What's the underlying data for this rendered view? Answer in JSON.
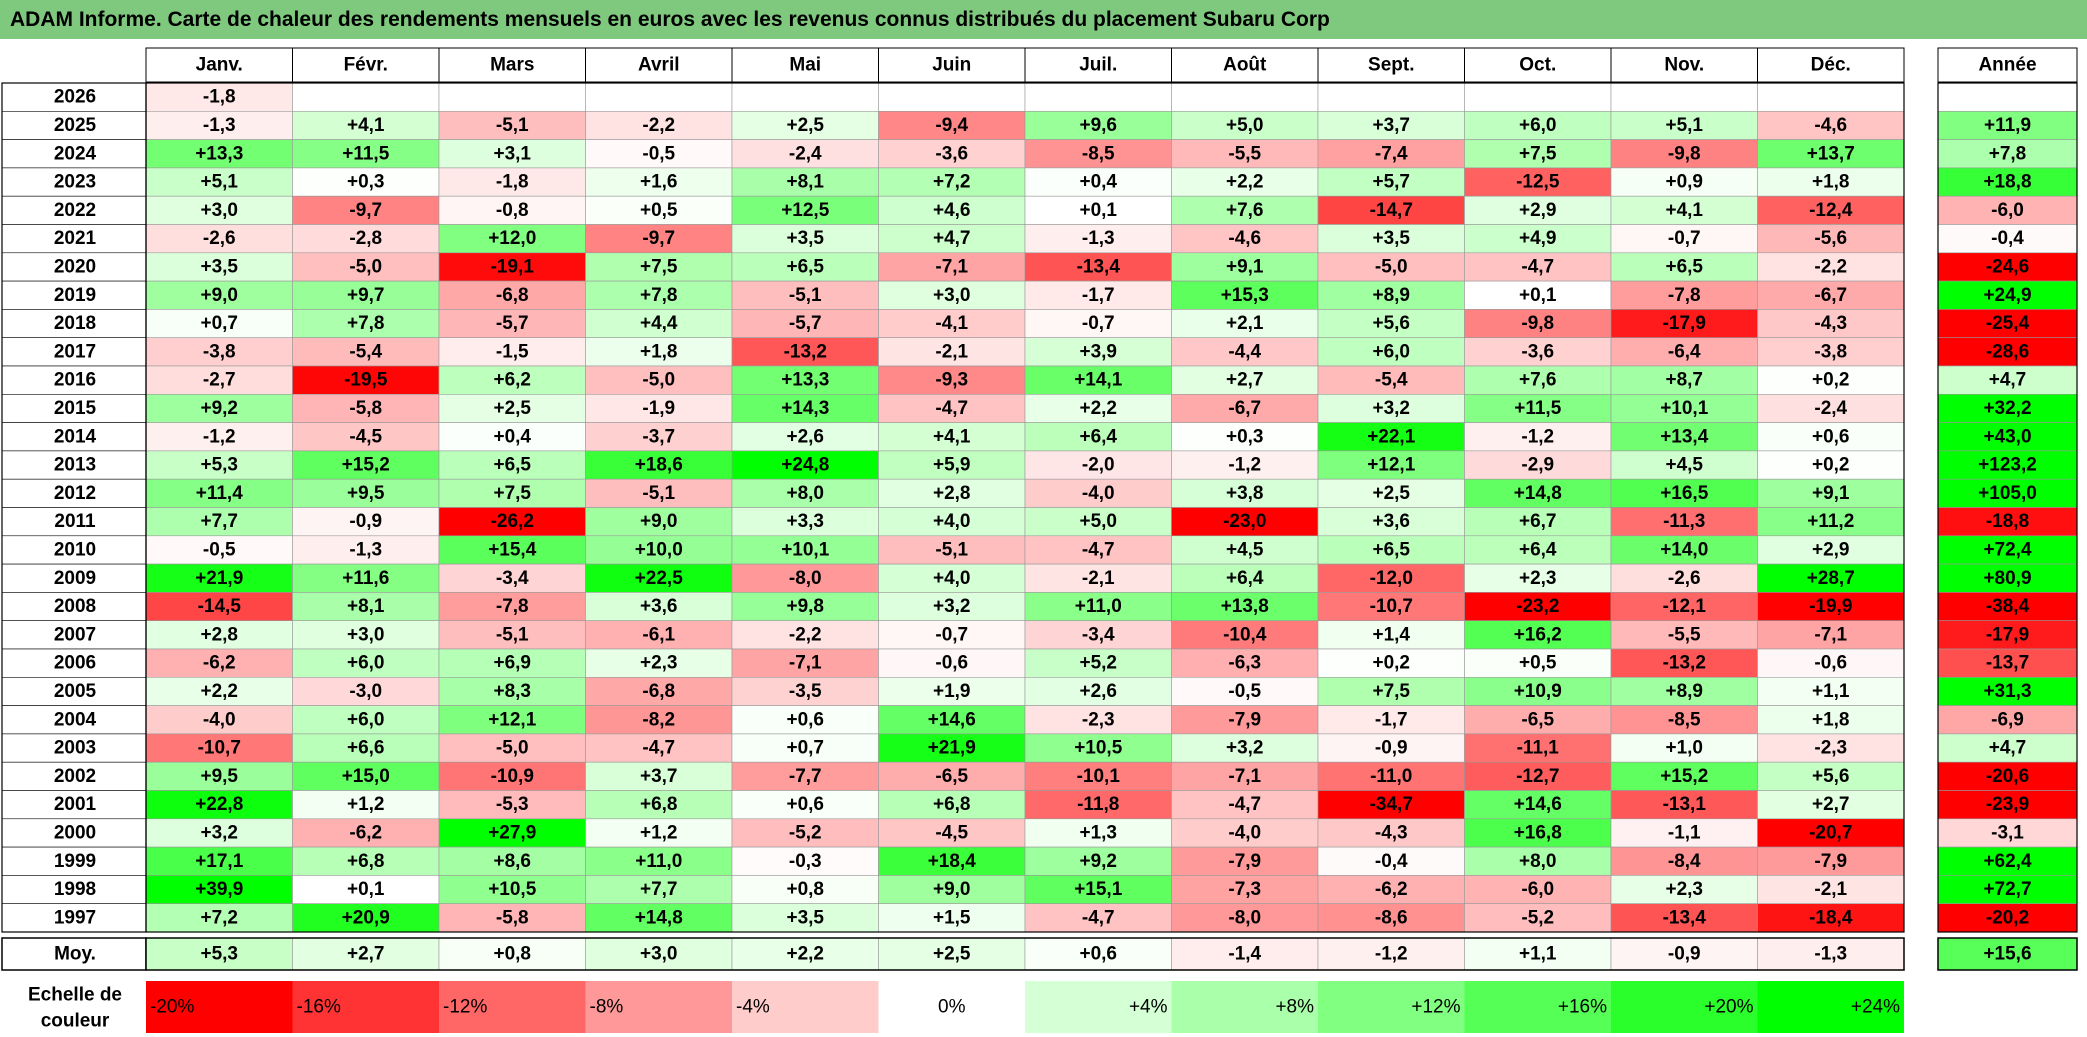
{
  "title": "ADAM Informe. Carte de chaleur des rendements mensuels en euros avec les revenus connus distribués du placement Subaru Corp",
  "chart_data": {
    "type": "heatmap",
    "months": [
      "Janv.",
      "Févr.",
      "Mars",
      "Avril",
      "Mai",
      "Juin",
      "Juil.",
      "Août",
      "Sept.",
      "Oct.",
      "Nov.",
      "Déc."
    ],
    "year_header": "Année",
    "avg_label": "Moy.",
    "scale_label_line1": "Echelle de",
    "scale_label_line2": "couleur",
    "rows": [
      {
        "year": "2026",
        "values": [
          -1.8,
          null,
          null,
          null,
          null,
          null,
          null,
          null,
          null,
          null,
          null,
          null
        ],
        "total": null
      },
      {
        "year": "2025",
        "values": [
          -1.3,
          4.1,
          -5.1,
          -2.2,
          2.5,
          -9.4,
          9.6,
          5.0,
          3.7,
          6.0,
          5.1,
          -4.6
        ],
        "total": 11.9
      },
      {
        "year": "2024",
        "values": [
          13.3,
          11.5,
          3.1,
          -0.5,
          -2.4,
          -3.6,
          -8.5,
          -5.5,
          -7.4,
          7.5,
          -9.8,
          13.7
        ],
        "total": 7.8
      },
      {
        "year": "2023",
        "values": [
          5.1,
          0.3,
          -1.8,
          1.6,
          8.1,
          7.2,
          0.4,
          2.2,
          5.7,
          -12.5,
          0.9,
          1.8
        ],
        "total": 18.8
      },
      {
        "year": "2022",
        "values": [
          3.0,
          -9.7,
          -0.8,
          0.5,
          12.5,
          4.6,
          0.1,
          7.6,
          -14.7,
          2.9,
          4.1,
          -12.4
        ],
        "total": -6.0
      },
      {
        "year": "2021",
        "values": [
          -2.6,
          -2.8,
          12.0,
          -9.7,
          3.5,
          4.7,
          -1.3,
          -4.6,
          3.5,
          4.9,
          -0.7,
          -5.6
        ],
        "total": -0.4
      },
      {
        "year": "2020",
        "values": [
          3.5,
          -5.0,
          -19.1,
          7.5,
          6.5,
          -7.1,
          -13.4,
          9.1,
          -5.0,
          -4.7,
          6.5,
          -2.2
        ],
        "total": -24.6
      },
      {
        "year": "2019",
        "values": [
          9.0,
          9.7,
          -6.8,
          7.8,
          -5.1,
          3.0,
          -1.7,
          15.3,
          8.9,
          0.1,
          -7.8,
          -6.7
        ],
        "total": 24.9
      },
      {
        "year": "2018",
        "values": [
          0.7,
          7.8,
          -5.7,
          4.4,
          -5.7,
          -4.1,
          -0.7,
          2.1,
          5.6,
          -9.8,
          -17.9,
          -4.3
        ],
        "total": -25.4
      },
      {
        "year": "2017",
        "values": [
          -3.8,
          -5.4,
          -1.5,
          1.8,
          -13.2,
          -2.1,
          3.9,
          -4.4,
          6.0,
          -3.6,
          -6.4,
          -3.8
        ],
        "total": -28.6
      },
      {
        "year": "2016",
        "values": [
          -2.7,
          -19.5,
          6.2,
          -5.0,
          13.3,
          -9.3,
          14.1,
          2.7,
          -5.4,
          7.6,
          8.7,
          0.2
        ],
        "total": 4.7
      },
      {
        "year": "2015",
        "values": [
          9.2,
          -5.8,
          2.5,
          -1.9,
          14.3,
          -4.7,
          2.2,
          -6.7,
          3.2,
          11.5,
          10.1,
          -2.4
        ],
        "total": 32.2
      },
      {
        "year": "2014",
        "values": [
          -1.2,
          -4.5,
          0.4,
          -3.7,
          2.6,
          4.1,
          6.4,
          0.3,
          22.1,
          -1.2,
          13.4,
          0.6
        ],
        "total": 43.0
      },
      {
        "year": "2013",
        "values": [
          5.3,
          15.2,
          6.5,
          18.6,
          24.8,
          5.9,
          -2.0,
          -1.2,
          12.1,
          -2.9,
          4.5,
          0.2
        ],
        "total": 123.2
      },
      {
        "year": "2012",
        "values": [
          11.4,
          9.5,
          7.5,
          -5.1,
          8.0,
          2.8,
          -4.0,
          3.8,
          2.5,
          14.8,
          16.5,
          9.1
        ],
        "total": 105.0
      },
      {
        "year": "2011",
        "values": [
          7.7,
          -0.9,
          -26.2,
          9.0,
          3.3,
          4.0,
          5.0,
          -23.0,
          3.6,
          6.7,
          -11.3,
          11.2
        ],
        "total": -18.8
      },
      {
        "year": "2010",
        "values": [
          -0.5,
          -1.3,
          15.4,
          10.0,
          10.1,
          -5.1,
          -4.7,
          4.5,
          6.5,
          6.4,
          14.0,
          2.9
        ],
        "total": 72.4
      },
      {
        "year": "2009",
        "values": [
          21.9,
          11.6,
          -3.4,
          22.5,
          -8.0,
          4.0,
          -2.1,
          6.4,
          -12.0,
          2.3,
          -2.6,
          28.7
        ],
        "total": 80.9
      },
      {
        "year": "2008",
        "values": [
          -14.5,
          8.1,
          -7.8,
          3.6,
          9.8,
          3.2,
          11.0,
          13.8,
          -10.7,
          -23.2,
          -12.1,
          -19.9
        ],
        "total": -38.4
      },
      {
        "year": "2007",
        "values": [
          2.8,
          3.0,
          -5.1,
          -6.1,
          -2.2,
          -0.7,
          -3.4,
          -10.4,
          1.4,
          16.2,
          -5.5,
          -7.1
        ],
        "total": -17.9
      },
      {
        "year": "2006",
        "values": [
          -6.2,
          6.0,
          6.9,
          2.3,
          -7.1,
          -0.6,
          5.2,
          -6.3,
          0.2,
          0.5,
          -13.2,
          -0.6
        ],
        "total": -13.7
      },
      {
        "year": "2005",
        "values": [
          2.2,
          -3.0,
          8.3,
          -6.8,
          -3.5,
          1.9,
          2.6,
          -0.5,
          7.5,
          10.9,
          8.9,
          1.1
        ],
        "total": 31.3
      },
      {
        "year": "2004",
        "values": [
          -4.0,
          6.0,
          12.1,
          -8.2,
          0.6,
          14.6,
          -2.3,
          -7.9,
          -1.7,
          -6.5,
          -8.5,
          1.8
        ],
        "total": -6.9
      },
      {
        "year": "2003",
        "values": [
          -10.7,
          6.6,
          -5.0,
          -4.7,
          0.7,
          21.9,
          10.5,
          3.2,
          -0.9,
          -11.1,
          1.0,
          -2.3
        ],
        "total": 4.7
      },
      {
        "year": "2002",
        "values": [
          9.5,
          15.0,
          -10.9,
          3.7,
          -7.7,
          -6.5,
          -10.1,
          -7.1,
          -11.0,
          -12.7,
          15.2,
          5.6
        ],
        "total": -20.6
      },
      {
        "year": "2001",
        "values": [
          22.8,
          1.2,
          -5.3,
          6.8,
          0.6,
          6.8,
          -11.8,
          -4.7,
          -34.7,
          14.6,
          -13.1,
          2.7
        ],
        "total": -23.9
      },
      {
        "year": "2000",
        "values": [
          3.2,
          -6.2,
          27.9,
          1.2,
          -5.2,
          -4.5,
          1.3,
          -4.0,
          -4.3,
          16.8,
          -1.1,
          -20.7
        ],
        "total": -3.1
      },
      {
        "year": "1999",
        "values": [
          17.1,
          6.8,
          8.6,
          11.0,
          -0.3,
          18.4,
          9.2,
          -7.9,
          -0.4,
          8.0,
          -8.4,
          -7.9
        ],
        "total": 62.4
      },
      {
        "year": "1998",
        "values": [
          39.9,
          0.1,
          10.5,
          7.7,
          0.8,
          9.0,
          15.1,
          -7.3,
          -6.2,
          -6.0,
          2.3,
          -2.1
        ],
        "total": 72.7
      },
      {
        "year": "1997",
        "values": [
          7.2,
          20.9,
          -5.8,
          14.8,
          3.5,
          1.5,
          -4.7,
          -8.0,
          -8.6,
          -5.2,
          -13.4,
          -18.4
        ],
        "total": -20.2
      }
    ],
    "averages": [
      5.3,
      2.7,
      0.8,
      3.0,
      2.2,
      2.5,
      0.6,
      -1.4,
      -1.2,
      1.1,
      -0.9,
      -1.3
    ],
    "average_total": 15.6,
    "scale": [
      {
        "label": "-20%",
        "value": -20
      },
      {
        "label": "-16%",
        "value": -16
      },
      {
        "label": "-12%",
        "value": -12
      },
      {
        "label": "-8%",
        "value": -8
      },
      {
        "label": "-4%",
        "value": -4
      },
      {
        "label": "0%",
        "value": 0
      },
      {
        "label": "+4%",
        "value": 4
      },
      {
        "label": "+8%",
        "value": 8
      },
      {
        "label": "+12%",
        "value": 12
      },
      {
        "label": "+16%",
        "value": 16
      },
      {
        "label": "+20%",
        "value": 20
      },
      {
        "label": "+24%",
        "value": 24
      }
    ],
    "colors": {
      "negative": "#ff0000",
      "neutral": "#ffffff",
      "positive": "#00ff00",
      "title_bg": "#7fc97f"
    }
  }
}
